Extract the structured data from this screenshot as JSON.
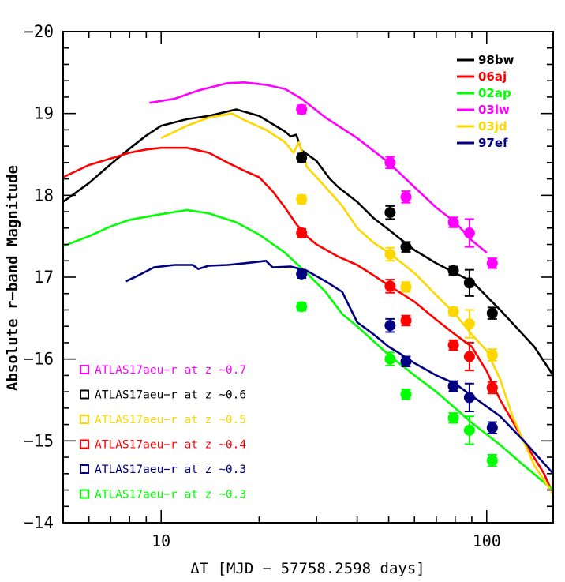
{
  "chart_data": {
    "type": "line",
    "title": "",
    "xlabel": "ΔT [MJD − 57758.2598 days]",
    "ylabel": "Absolute r−band Magnitude",
    "xscale": "log",
    "xlim": [
      5,
      160
    ],
    "ylim": [
      -14,
      -20
    ],
    "y_tick_labels": [
      "−20",
      "19",
      "18",
      "17",
      "−16",
      "−15",
      "−14"
    ],
    "y_tick_values": [
      -20,
      -19,
      -18,
      -17,
      -16,
      -15,
      -14
    ],
    "x_tick_labels": [
      "10",
      "100"
    ],
    "x_tick_values": [
      10,
      100
    ],
    "template_series": [
      {
        "name": "98bw",
        "color": "#000000",
        "points": [
          [
            5,
            -17.92
          ],
          [
            6,
            -18.15
          ],
          [
            7,
            -18.38
          ],
          [
            8,
            -18.57
          ],
          [
            9,
            -18.73
          ],
          [
            10,
            -18.85
          ],
          [
            12,
            -18.93
          ],
          [
            14,
            -18.97
          ],
          [
            17,
            -19.05
          ],
          [
            20,
            -18.97
          ],
          [
            22,
            -18.87
          ],
          [
            24,
            -18.78
          ],
          [
            25,
            -18.72
          ],
          [
            26,
            -18.74
          ],
          [
            27,
            -18.55
          ],
          [
            30,
            -18.42
          ],
          [
            33,
            -18.2
          ],
          [
            35,
            -18.1
          ],
          [
            40,
            -17.92
          ],
          [
            45,
            -17.72
          ],
          [
            50,
            -17.58
          ],
          [
            55,
            -17.45
          ],
          [
            60,
            -17.33
          ],
          [
            70,
            -17.17
          ],
          [
            80,
            -17.05
          ],
          [
            90,
            -16.95
          ],
          [
            110,
            -16.6
          ],
          [
            140,
            -16.15
          ],
          [
            160,
            -15.8
          ]
        ]
      },
      {
        "name": "06aj",
        "color": "#ff0000",
        "points": [
          [
            5,
            -18.22
          ],
          [
            6,
            -18.37
          ],
          [
            7,
            -18.45
          ],
          [
            8,
            -18.52
          ],
          [
            9,
            -18.56
          ],
          [
            10,
            -18.58
          ],
          [
            12,
            -18.58
          ],
          [
            14,
            -18.52
          ],
          [
            16,
            -18.4
          ],
          [
            18,
            -18.3
          ],
          [
            20,
            -18.22
          ],
          [
            22,
            -18.05
          ],
          [
            24,
            -17.85
          ],
          [
            26,
            -17.65
          ],
          [
            28,
            -17.5
          ],
          [
            30,
            -17.4
          ],
          [
            35,
            -17.25
          ],
          [
            40,
            -17.15
          ],
          [
            45,
            -17.02
          ],
          [
            50,
            -16.9
          ],
          [
            60,
            -16.7
          ],
          [
            70,
            -16.48
          ],
          [
            80,
            -16.3
          ],
          [
            90,
            -16.15
          ],
          [
            100,
            -15.85
          ],
          [
            110,
            -15.5
          ],
          [
            130,
            -15.0
          ],
          [
            150,
            -14.6
          ],
          [
            160,
            -14.35
          ]
        ]
      },
      {
        "name": "02ap",
        "color": "#00ff00",
        "points": [
          [
            5,
            -17.38
          ],
          [
            6,
            -17.5
          ],
          [
            7,
            -17.62
          ],
          [
            8,
            -17.7
          ],
          [
            10,
            -17.77
          ],
          [
            12,
            -17.82
          ],
          [
            14,
            -17.78
          ],
          [
            17,
            -17.67
          ],
          [
            20,
            -17.52
          ],
          [
            24,
            -17.3
          ],
          [
            28,
            -17.05
          ],
          [
            32,
            -16.82
          ],
          [
            36,
            -16.55
          ],
          [
            40,
            -16.4
          ],
          [
            50,
            -16.05
          ],
          [
            60,
            -15.8
          ],
          [
            70,
            -15.6
          ],
          [
            80,
            -15.4
          ],
          [
            90,
            -15.22
          ],
          [
            110,
            -14.95
          ],
          [
            130,
            -14.7
          ],
          [
            160,
            -14.4
          ]
        ]
      },
      {
        "name": "03lw",
        "color": "#ff00ff",
        "points": [
          [
            9.2,
            -19.13
          ],
          [
            11,
            -19.18
          ],
          [
            13,
            -19.28
          ],
          [
            16,
            -19.37
          ],
          [
            18,
            -19.38
          ],
          [
            21,
            -19.35
          ],
          [
            24,
            -19.3
          ],
          [
            27,
            -19.18
          ],
          [
            32,
            -18.95
          ],
          [
            40,
            -18.7
          ],
          [
            50,
            -18.4
          ],
          [
            60,
            -18.1
          ],
          [
            70,
            -17.85
          ],
          [
            80,
            -17.67
          ],
          [
            90,
            -17.45
          ],
          [
            100,
            -17.3
          ]
        ]
      },
      {
        "name": "03jd",
        "color": "#ffd700",
        "points": [
          [
            10,
            -18.7
          ],
          [
            12,
            -18.85
          ],
          [
            14,
            -18.95
          ],
          [
            16.5,
            -19.0
          ],
          [
            18,
            -18.92
          ],
          [
            21,
            -18.8
          ],
          [
            24,
            -18.65
          ],
          [
            25.5,
            -18.52
          ],
          [
            26.5,
            -18.65
          ],
          [
            28,
            -18.35
          ],
          [
            32,
            -18.1
          ],
          [
            36,
            -17.87
          ],
          [
            40,
            -17.6
          ],
          [
            45,
            -17.42
          ],
          [
            50,
            -17.3
          ],
          [
            60,
            -17.05
          ],
          [
            70,
            -16.78
          ],
          [
            80,
            -16.55
          ],
          [
            90,
            -16.3
          ],
          [
            100,
            -16.1
          ],
          [
            110,
            -15.75
          ],
          [
            120,
            -15.3
          ],
          [
            140,
            -14.7
          ],
          [
            160,
            -14.35
          ]
        ]
      },
      {
        "name": "97ef",
        "color": "#000080",
        "points": [
          [
            7.8,
            -16.95
          ],
          [
            8.5,
            -17.02
          ],
          [
            9.5,
            -17.12
          ],
          [
            11,
            -17.15
          ],
          [
            12.5,
            -17.15
          ],
          [
            13,
            -17.1
          ],
          [
            14,
            -17.14
          ],
          [
            16,
            -17.15
          ],
          [
            18,
            -17.17
          ],
          [
            21,
            -17.2
          ],
          [
            22,
            -17.12
          ],
          [
            25,
            -17.13
          ],
          [
            28,
            -17.08
          ],
          [
            32,
            -16.95
          ],
          [
            36,
            -16.82
          ],
          [
            40,
            -16.45
          ],
          [
            45,
            -16.3
          ],
          [
            50,
            -16.15
          ],
          [
            55,
            -16.05
          ],
          [
            60,
            -15.95
          ],
          [
            70,
            -15.8
          ],
          [
            80,
            -15.7
          ],
          [
            90,
            -15.55
          ],
          [
            110,
            -15.3
          ],
          [
            130,
            -15.0
          ],
          [
            160,
            -14.6
          ]
        ]
      }
    ],
    "observed_series": [
      {
        "name": "ATLAS17aeu−r at z ~0.7",
        "color": "#ff00ff",
        "points": [
          [
            27,
            -19.05,
            0.05
          ],
          [
            50.5,
            -18.4,
            0.07
          ],
          [
            56.5,
            -17.98,
            0.07
          ],
          [
            79,
            -17.67,
            0.06
          ],
          [
            88.5,
            -17.54,
            0.17
          ],
          [
            104,
            -17.17,
            0.06
          ]
        ]
      },
      {
        "name": "ATLAS17aeu−r at z ~0.6",
        "color": "#000000",
        "points": [
          [
            27,
            -18.46,
            0.05
          ],
          [
            50.5,
            -17.79,
            0.08
          ],
          [
            56.5,
            -17.37,
            0.06
          ],
          [
            79,
            -17.08,
            0.05
          ],
          [
            88.5,
            -16.93,
            0.16
          ],
          [
            104,
            -16.56,
            0.07
          ]
        ]
      },
      {
        "name": "ATLAS17aeu−r at z ~0.5",
        "color": "#ffd700",
        "points": [
          [
            27,
            -17.95,
            0.05
          ],
          [
            50.5,
            -17.28,
            0.08
          ],
          [
            56.5,
            -16.88,
            0.06
          ],
          [
            79,
            -16.58,
            0.05
          ],
          [
            88.5,
            -16.43,
            0.17
          ],
          [
            104,
            -16.05,
            0.07
          ]
        ]
      },
      {
        "name": "ATLAS17aeu−r at z ~0.4",
        "color": "#ff0000",
        "points": [
          [
            27,
            -17.54,
            0.05
          ],
          [
            50.5,
            -16.89,
            0.08
          ],
          [
            56.5,
            -16.47,
            0.06
          ],
          [
            79,
            -16.17,
            0.06
          ],
          [
            88.5,
            -16.03,
            0.17
          ],
          [
            104,
            -15.65,
            0.07
          ]
        ]
      },
      {
        "name": "ATLAS17aeu−r at z ~0.3",
        "color": "#000080",
        "points": [
          [
            27,
            -17.04,
            0.05
          ],
          [
            50.5,
            -16.41,
            0.08
          ],
          [
            56.5,
            -15.97,
            0.06
          ],
          [
            79,
            -15.67,
            0.06
          ],
          [
            88.5,
            -15.53,
            0.17
          ],
          [
            104,
            -15.16,
            0.07
          ]
        ]
      },
      {
        "name": "ATLAS17aeu−r at z ~0.3",
        "color": "#00ff00",
        "points": [
          [
            27,
            -16.64,
            0.05
          ],
          [
            50.5,
            -16.0,
            0.08
          ],
          [
            56.5,
            -15.57,
            0.06
          ],
          [
            79,
            -15.28,
            0.06
          ],
          [
            88.5,
            -15.13,
            0.17
          ],
          [
            104,
            -14.76,
            0.07
          ]
        ]
      }
    ],
    "legend_templates_position": "top-right",
    "legend_observed_position": "bottom-left"
  }
}
